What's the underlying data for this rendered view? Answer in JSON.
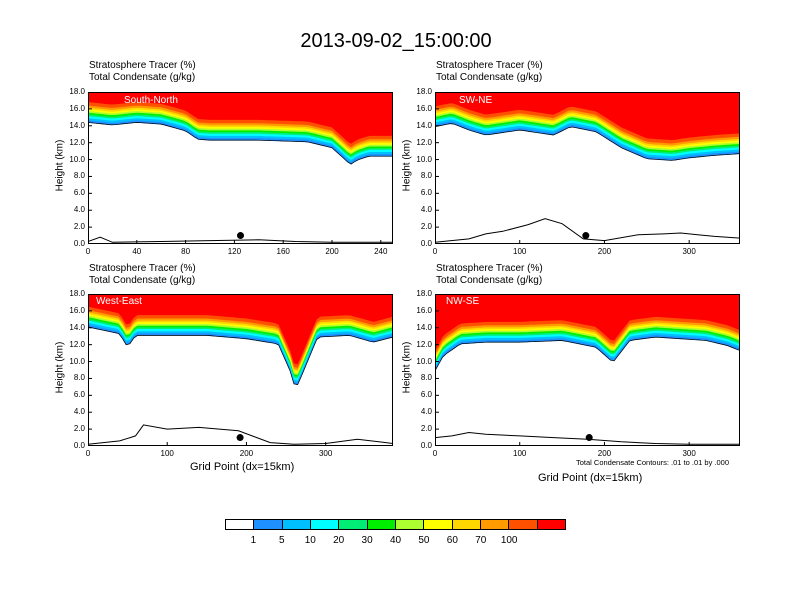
{
  "title": "2013-09-02_15:00:00",
  "panel_text": {
    "line1": "Stratosphere Tracer   (%)",
    "line2": "Total Condensate   (g/kg)",
    "ylabel": "Height (km)",
    "xlabel": "Grid Point (dx=15km)",
    "footnote": "Total Condensate Contours: .01 to .01 by .000"
  },
  "colors": {
    "white": "#ffffff",
    "c1": "#1e90ff",
    "c5": "#00bfff",
    "c10": "#00ffff",
    "c20": "#00ee76",
    "c30": "#00ee00",
    "c40": "#adff2f",
    "c50": "#ffff00",
    "c60": "#ffd700",
    "c70": "#ff9a00",
    "c80": "#ff5000",
    "c100": "#ff0000"
  },
  "chart_data": [
    {
      "type": "heatmap",
      "name": "South-North",
      "xlim": [
        0,
        250
      ],
      "ylim": [
        0,
        18
      ],
      "xticks": [
        "0",
        "40",
        "80",
        "120",
        "160",
        "200",
        "240"
      ],
      "yticks": [
        "0.0",
        "2.0",
        "4.0",
        "6.0",
        "8.0",
        "10.0",
        "12.0",
        "14.0",
        "16.0",
        "18.0"
      ],
      "tropopause_x": [
        0,
        20,
        40,
        60,
        80,
        90,
        100,
        140,
        180,
        200,
        210,
        215,
        220,
        230,
        250
      ],
      "tropopause_y": [
        14.5,
        14.2,
        14.5,
        14.3,
        13.5,
        12.5,
        12.4,
        12.4,
        12.2,
        11.5,
        10.2,
        9.5,
        10.0,
        10.5,
        10.5
      ],
      "terrain_x": [
        0,
        10,
        20,
        60,
        100,
        140,
        170,
        200,
        250
      ],
      "terrain_y": [
        0.3,
        0.8,
        0.2,
        0.3,
        0.4,
        0.5,
        0.3,
        0.2,
        0.2
      ],
      "marker_x": 125,
      "marker_y": 1.0
    },
    {
      "type": "heatmap",
      "name": "SW-NE",
      "xlim": [
        0,
        360
      ],
      "ylim": [
        0,
        18
      ],
      "xticks": [
        "0",
        "100",
        "200",
        "300"
      ],
      "yticks": [
        "0.0",
        "2.0",
        "4.0",
        "6.0",
        "8.0",
        "10.0",
        "12.0",
        "14.0",
        "16.0",
        "18.0"
      ],
      "tropopause_x": [
        0,
        20,
        40,
        60,
        100,
        140,
        160,
        190,
        220,
        250,
        280,
        300,
        330,
        360
      ],
      "tropopause_y": [
        14.0,
        14.4,
        13.6,
        13.0,
        13.6,
        13.0,
        14.0,
        13.4,
        11.5,
        10.2,
        10.0,
        10.3,
        10.6,
        10.8
      ],
      "terrain_x": [
        0,
        40,
        60,
        80,
        110,
        130,
        150,
        175,
        200,
        240,
        270,
        290,
        310,
        330,
        360
      ],
      "terrain_y": [
        0.2,
        0.6,
        1.2,
        1.5,
        2.3,
        3.0,
        2.4,
        0.6,
        0.4,
        1.1,
        1.2,
        1.3,
        1.1,
        0.9,
        0.7
      ],
      "marker_x": 178,
      "marker_y": 1.0
    },
    {
      "type": "heatmap",
      "name": "West-East",
      "xlim": [
        0,
        385
      ],
      "ylim": [
        0,
        18
      ],
      "xticks": [
        "0",
        "100",
        "200",
        "300"
      ],
      "yticks": [
        "0.0",
        "2.0",
        "4.0",
        "6.0",
        "8.0",
        "10.0",
        "12.0",
        "14.0",
        "16.0",
        "18.0"
      ],
      "tropopause_x": [
        0,
        20,
        40,
        50,
        60,
        100,
        150,
        200,
        240,
        255,
        262,
        270,
        290,
        330,
        360,
        385
      ],
      "tropopause_y": [
        14.2,
        13.8,
        13.4,
        11.8,
        13.2,
        13.2,
        13.2,
        12.8,
        12.2,
        9.0,
        6.8,
        8.5,
        13.0,
        13.2,
        12.4,
        13.0
      ],
      "terrain_x": [
        0,
        40,
        60,
        70,
        100,
        140,
        190,
        230,
        260,
        300,
        340,
        385
      ],
      "terrain_y": [
        0.2,
        0.6,
        1.2,
        2.5,
        2.0,
        2.2,
        1.8,
        0.4,
        0.2,
        0.3,
        0.8,
        0.3
      ],
      "marker_x": 192,
      "marker_y": 1.0
    },
    {
      "type": "heatmap",
      "name": "NW-SE",
      "xlim": [
        0,
        360
      ],
      "ylim": [
        0,
        18
      ],
      "xticks": [
        "0",
        "100",
        "200",
        "300"
      ],
      "yticks": [
        "0.0",
        "2.0",
        "4.0",
        "6.0",
        "8.0",
        "10.0",
        "12.0",
        "14.0",
        "16.0",
        "18.0"
      ],
      "tropopause_x": [
        0,
        10,
        30,
        60,
        100,
        150,
        190,
        210,
        230,
        260,
        290,
        320,
        345,
        360
      ],
      "tropopause_y": [
        9.0,
        10.8,
        12.2,
        12.4,
        12.4,
        12.6,
        11.8,
        10.0,
        12.6,
        13.0,
        12.8,
        12.6,
        12.0,
        11.4
      ],
      "terrain_x": [
        0,
        20,
        40,
        60,
        100,
        140,
        180,
        220,
        260,
        300,
        340,
        360
      ],
      "terrain_y": [
        1.0,
        1.2,
        1.6,
        1.4,
        1.2,
        1.0,
        0.8,
        0.5,
        0.3,
        0.2,
        0.2,
        0.2
      ],
      "marker_x": 182,
      "marker_y": 1.0
    }
  ],
  "colorbar": {
    "labels": [
      "1",
      "5",
      "10",
      "20",
      "30",
      "40",
      "50",
      "60",
      "70",
      "100"
    ]
  }
}
